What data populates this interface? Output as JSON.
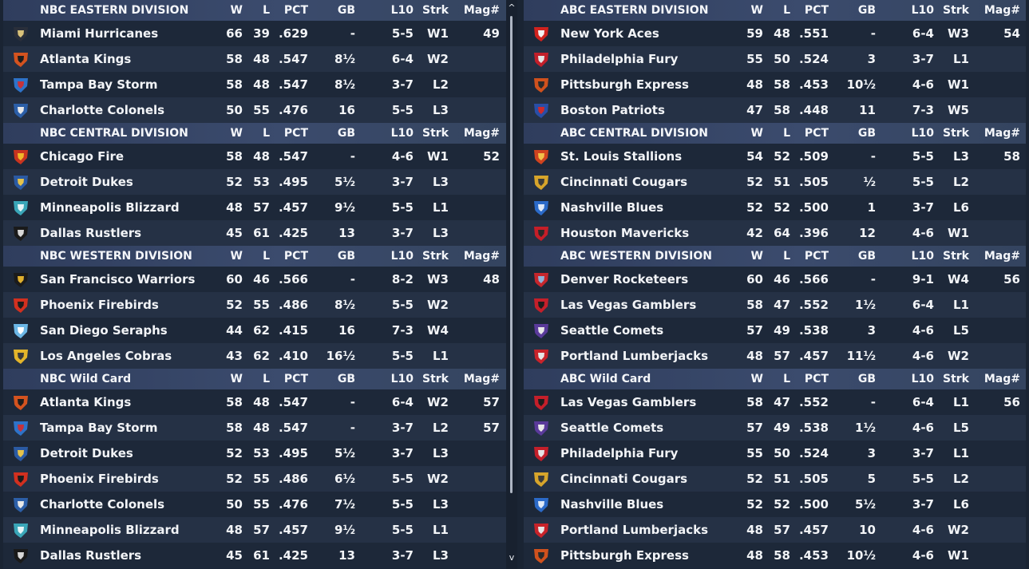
{
  "columns": {
    "w": "W",
    "l": "L",
    "pct": "PCT",
    "gb": "GB",
    "l10": "L10",
    "strk": "Strk",
    "mag": "Mag#"
  },
  "left": [
    {
      "title": "NBC EASTERN DIVISION",
      "rows": [
        {
          "logo": "miami-hurricanes-logo",
          "name": "Miami Hurricanes",
          "w": "66",
          "l": "39",
          "pct": ".629",
          "gb": "-",
          "l10": "5-5",
          "strk": "W1",
          "mag": "49"
        },
        {
          "logo": "atlanta-kings-logo",
          "name": "Atlanta Kings",
          "w": "58",
          "l": "48",
          "pct": ".547",
          "gb": "8½",
          "l10": "6-4",
          "strk": "W2",
          "mag": ""
        },
        {
          "logo": "tampa-bay-storm-logo",
          "name": "Tampa Bay Storm",
          "w": "58",
          "l": "48",
          "pct": ".547",
          "gb": "8½",
          "l10": "3-7",
          "strk": "L2",
          "mag": ""
        },
        {
          "logo": "charlotte-colonels-logo",
          "name": "Charlotte Colonels",
          "w": "50",
          "l": "55",
          "pct": ".476",
          "gb": "16",
          "l10": "5-5",
          "strk": "L3",
          "mag": ""
        }
      ]
    },
    {
      "title": "NBC CENTRAL DIVISION",
      "rows": [
        {
          "logo": "chicago-fire-logo",
          "name": "Chicago Fire",
          "w": "58",
          "l": "48",
          "pct": ".547",
          "gb": "-",
          "l10": "4-6",
          "strk": "W1",
          "mag": "52"
        },
        {
          "logo": "detroit-dukes-logo",
          "name": "Detroit Dukes",
          "w": "52",
          "l": "53",
          "pct": ".495",
          "gb": "5½",
          "l10": "3-7",
          "strk": "L3",
          "mag": ""
        },
        {
          "logo": "minneapolis-blizzard-logo",
          "name": "Minneapolis Blizzard",
          "w": "48",
          "l": "57",
          "pct": ".457",
          "gb": "9½",
          "l10": "5-5",
          "strk": "L1",
          "mag": ""
        },
        {
          "logo": "dallas-rustlers-logo",
          "name": "Dallas Rustlers",
          "w": "45",
          "l": "61",
          "pct": ".425",
          "gb": "13",
          "l10": "3-7",
          "strk": "L3",
          "mag": ""
        }
      ]
    },
    {
      "title": "NBC WESTERN DIVISION",
      "rows": [
        {
          "logo": "san-francisco-warriors-logo",
          "name": "San Francisco Warriors",
          "w": "60",
          "l": "46",
          "pct": ".566",
          "gb": "-",
          "l10": "8-2",
          "strk": "W3",
          "mag": "48"
        },
        {
          "logo": "phoenix-firebirds-logo",
          "name": "Phoenix Firebirds",
          "w": "52",
          "l": "55",
          "pct": ".486",
          "gb": "8½",
          "l10": "5-5",
          "strk": "W2",
          "mag": ""
        },
        {
          "logo": "san-diego-seraphs-logo",
          "name": "San Diego Seraphs",
          "w": "44",
          "l": "62",
          "pct": ".415",
          "gb": "16",
          "l10": "7-3",
          "strk": "W4",
          "mag": ""
        },
        {
          "logo": "los-angeles-cobras-logo",
          "name": "Los Angeles Cobras",
          "w": "43",
          "l": "62",
          "pct": ".410",
          "gb": "16½",
          "l10": "5-5",
          "strk": "L1",
          "mag": ""
        }
      ]
    },
    {
      "title": "NBC  Wild Card",
      "rows": [
        {
          "logo": "atlanta-kings-logo",
          "name": "Atlanta Kings",
          "w": "58",
          "l": "48",
          "pct": ".547",
          "gb": "-",
          "l10": "6-4",
          "strk": "W2",
          "mag": "57"
        },
        {
          "logo": "tampa-bay-storm-logo",
          "name": "Tampa Bay Storm",
          "w": "58",
          "l": "48",
          "pct": ".547",
          "gb": "-",
          "l10": "3-7",
          "strk": "L2",
          "mag": "57"
        },
        {
          "logo": "detroit-dukes-logo",
          "name": "Detroit Dukes",
          "w": "52",
          "l": "53",
          "pct": ".495",
          "gb": "5½",
          "l10": "3-7",
          "strk": "L3",
          "mag": ""
        },
        {
          "logo": "phoenix-firebirds-logo",
          "name": "Phoenix Firebirds",
          "w": "52",
          "l": "55",
          "pct": ".486",
          "gb": "6½",
          "l10": "5-5",
          "strk": "W2",
          "mag": ""
        },
        {
          "logo": "charlotte-colonels-logo",
          "name": "Charlotte Colonels",
          "w": "50",
          "l": "55",
          "pct": ".476",
          "gb": "7½",
          "l10": "5-5",
          "strk": "L3",
          "mag": ""
        },
        {
          "logo": "minneapolis-blizzard-logo",
          "name": "Minneapolis Blizzard",
          "w": "48",
          "l": "57",
          "pct": ".457",
          "gb": "9½",
          "l10": "5-5",
          "strk": "L1",
          "mag": ""
        },
        {
          "logo": "dallas-rustlers-logo",
          "name": "Dallas Rustlers",
          "w": "45",
          "l": "61",
          "pct": ".425",
          "gb": "13",
          "l10": "3-7",
          "strk": "L3",
          "mag": ""
        }
      ]
    }
  ],
  "right": [
    {
      "title": "ABC EASTERN DIVISION",
      "rows": [
        {
          "logo": "new-york-aces-logo",
          "name": "New York Aces",
          "w": "59",
          "l": "48",
          "pct": ".551",
          "gb": "-",
          "l10": "6-4",
          "strk": "W3",
          "mag": "54"
        },
        {
          "logo": "philadelphia-fury-logo",
          "name": "Philadelphia Fury",
          "w": "55",
          "l": "50",
          "pct": ".524",
          "gb": "3",
          "l10": "3-7",
          "strk": "L1",
          "mag": ""
        },
        {
          "logo": "pittsburgh-express-logo",
          "name": "Pittsburgh Express",
          "w": "48",
          "l": "58",
          "pct": ".453",
          "gb": "10½",
          "l10": "4-6",
          "strk": "W1",
          "mag": ""
        },
        {
          "logo": "boston-patriots-logo",
          "name": "Boston Patriots",
          "w": "47",
          "l": "58",
          "pct": ".448",
          "gb": "11",
          "l10": "7-3",
          "strk": "W5",
          "mag": ""
        }
      ]
    },
    {
      "title": "ABC CENTRAL DIVISION",
      "rows": [
        {
          "logo": "st-louis-stallions-logo",
          "name": "St. Louis Stallions",
          "w": "54",
          "l": "52",
          "pct": ".509",
          "gb": "-",
          "l10": "5-5",
          "strk": "L3",
          "mag": "58"
        },
        {
          "logo": "cincinnati-cougars-logo",
          "name": "Cincinnati Cougars",
          "w": "52",
          "l": "51",
          "pct": ".505",
          "gb": "½",
          "l10": "5-5",
          "strk": "L2",
          "mag": ""
        },
        {
          "logo": "nashville-blues-logo",
          "name": "Nashville Blues",
          "w": "52",
          "l": "52",
          "pct": ".500",
          "gb": "1",
          "l10": "3-7",
          "strk": "L6",
          "mag": ""
        },
        {
          "logo": "houston-mavericks-logo",
          "name": "Houston Mavericks",
          "w": "42",
          "l": "64",
          "pct": ".396",
          "gb": "12",
          "l10": "4-6",
          "strk": "W1",
          "mag": ""
        }
      ]
    },
    {
      "title": "ABC WESTERN DIVISION",
      "rows": [
        {
          "logo": "denver-rocketeers-logo",
          "name": "Denver Rocketeers",
          "w": "60",
          "l": "46",
          "pct": ".566",
          "gb": "-",
          "l10": "9-1",
          "strk": "W4",
          "mag": "56"
        },
        {
          "logo": "las-vegas-gamblers-logo",
          "name": "Las Vegas Gamblers",
          "w": "58",
          "l": "47",
          "pct": ".552",
          "gb": "1½",
          "l10": "6-4",
          "strk": "L1",
          "mag": ""
        },
        {
          "logo": "seattle-comets-logo",
          "name": "Seattle Comets",
          "w": "57",
          "l": "49",
          "pct": ".538",
          "gb": "3",
          "l10": "4-6",
          "strk": "L5",
          "mag": ""
        },
        {
          "logo": "portland-lumberjacks-logo",
          "name": "Portland Lumberjacks",
          "w": "48",
          "l": "57",
          "pct": ".457",
          "gb": "11½",
          "l10": "4-6",
          "strk": "W2",
          "mag": ""
        }
      ]
    },
    {
      "title": "ABC  Wild Card",
      "rows": [
        {
          "logo": "las-vegas-gamblers-logo",
          "name": "Las Vegas Gamblers",
          "w": "58",
          "l": "47",
          "pct": ".552",
          "gb": "-",
          "l10": "6-4",
          "strk": "L1",
          "mag": "56"
        },
        {
          "logo": "seattle-comets-logo",
          "name": "Seattle Comets",
          "w": "57",
          "l": "49",
          "pct": ".538",
          "gb": "1½",
          "l10": "4-6",
          "strk": "L5",
          "mag": ""
        },
        {
          "logo": "philadelphia-fury-logo",
          "name": "Philadelphia Fury",
          "w": "55",
          "l": "50",
          "pct": ".524",
          "gb": "3",
          "l10": "3-7",
          "strk": "L1",
          "mag": ""
        },
        {
          "logo": "cincinnati-cougars-logo",
          "name": "Cincinnati Cougars",
          "w": "52",
          "l": "51",
          "pct": ".505",
          "gb": "5",
          "l10": "5-5",
          "strk": "L2",
          "mag": ""
        },
        {
          "logo": "nashville-blues-logo",
          "name": "Nashville Blues",
          "w": "52",
          "l": "52",
          "pct": ".500",
          "gb": "5½",
          "l10": "3-7",
          "strk": "L6",
          "mag": ""
        },
        {
          "logo": "portland-lumberjacks-logo",
          "name": "Portland Lumberjacks",
          "w": "48",
          "l": "57",
          "pct": ".457",
          "gb": "10",
          "l10": "4-6",
          "strk": "W2",
          "mag": ""
        },
        {
          "logo": "pittsburgh-express-logo",
          "name": "Pittsburgh Express",
          "w": "48",
          "l": "58",
          "pct": ".453",
          "gb": "10½",
          "l10": "4-6",
          "strk": "W1",
          "mag": ""
        }
      ]
    }
  ],
  "scrollbar": {
    "up_glyph": "^",
    "down_glyph": "v"
  },
  "logo_colors": {
    "miami-hurricanes-logo": [
      "#2a2f3a",
      "#d9c27a"
    ],
    "atlanta-kings-logo": [
      "#d4531f",
      "#1e1e1e"
    ],
    "tampa-bay-storm-logo": [
      "#2e73c9",
      "#c7323a"
    ],
    "charlotte-colonels-logo": [
      "#2c5fa8",
      "#e8e8e8"
    ],
    "chicago-fire-logo": [
      "#c8341f",
      "#f0b82a"
    ],
    "detroit-dukes-logo": [
      "#2b5aa3",
      "#e6c34a"
    ],
    "minneapolis-blizzard-logo": [
      "#3aa6b8",
      "#e6f4f7"
    ],
    "dallas-rustlers-logo": [
      "#1a1a1a",
      "#d8d8d8"
    ],
    "san-francisco-warriors-logo": [
      "#1b1b1b",
      "#e0b02e"
    ],
    "phoenix-firebirds-logo": [
      "#d2301f",
      "#1c1c1c"
    ],
    "san-diego-seraphs-logo": [
      "#6cb7e6",
      "#ffffff"
    ],
    "los-angeles-cobras-logo": [
      "#e3b52a",
      "#3a3a3a"
    ],
    "new-york-aces-logo": [
      "#d0221e",
      "#f2f2f2"
    ],
    "philadelphia-fury-logo": [
      "#c21f2a",
      "#e4e4e4"
    ],
    "pittsburgh-express-logo": [
      "#d0511d",
      "#2a2a2a"
    ],
    "boston-patriots-logo": [
      "#2a4ea6",
      "#cf2a2a"
    ],
    "st-louis-stallions-logo": [
      "#d0431f",
      "#f1c14a"
    ],
    "cincinnati-cougars-logo": [
      "#d7a52b",
      "#3c3c3c"
    ],
    "nashville-blues-logo": [
      "#2b6ac8",
      "#dfe9f7"
    ],
    "houston-mavericks-logo": [
      "#c61e28",
      "#2a2a2a"
    ],
    "denver-rocketeers-logo": [
      "#c5262c",
      "#8fb2d8"
    ],
    "las-vegas-gamblers-logo": [
      "#c51f2a",
      "#1d1d1d"
    ],
    "seattle-comets-logo": [
      "#5a3a9a",
      "#e8e8e8"
    ],
    "portland-lumberjacks-logo": [
      "#c8232a",
      "#e6e6e6"
    ]
  }
}
